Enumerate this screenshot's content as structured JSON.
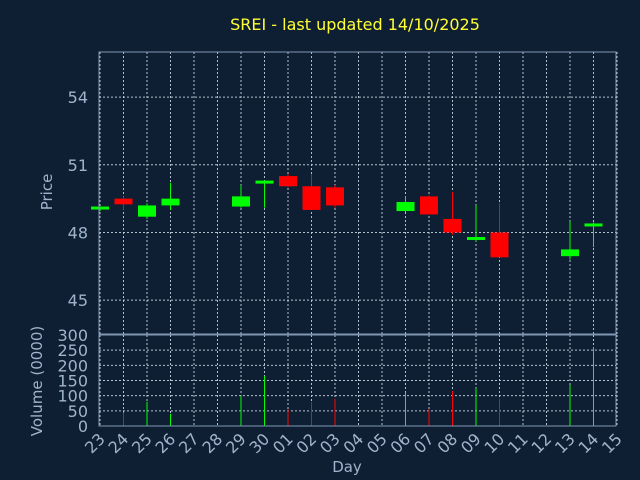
{
  "chart_data": {
    "type": "candlestick",
    "title": "SREI - last updated 14/10/2025",
    "xlabel": "Day",
    "price_ylabel": "Price",
    "volume_ylabel": "Volume (0000)",
    "x_tick_labels": [
      "23",
      "24",
      "25",
      "26",
      "27",
      "28",
      "29",
      "30",
      "01",
      "02",
      "03",
      "04",
      "05",
      "06",
      "07",
      "08",
      "09",
      "10",
      "11",
      "12",
      "13",
      "14",
      "15"
    ],
    "price_ylim": [
      43.5,
      56.0
    ],
    "price_ticks": [
      45,
      48,
      51,
      54
    ],
    "volume_ylim": [
      0,
      300
    ],
    "volume_ticks": [
      0,
      50,
      100,
      150,
      200,
      250,
      300
    ],
    "grid": true,
    "up_color": "#00ff00",
    "down_color": "#ff0000",
    "candles": [
      {
        "day": 0,
        "open": 49.05,
        "high": 49.15,
        "low": 48.95,
        "close": 49.15,
        "volume": 0
      },
      {
        "day": 1,
        "open": 49.5,
        "high": 49.6,
        "low": 49.0,
        "close": 49.25,
        "volume": 45
      },
      {
        "day": 2,
        "open": 48.7,
        "high": 49.3,
        "low": 48.6,
        "close": 49.2,
        "volume": 80
      },
      {
        "day": 3,
        "open": 49.2,
        "high": 50.2,
        "low": 49.0,
        "close": 49.5,
        "volume": 40
      },
      {
        "day": 6,
        "open": 49.15,
        "high": 50.1,
        "low": 49.1,
        "close": 49.6,
        "volume": 100
      },
      {
        "day": 7,
        "open": 50.2,
        "high": 50.3,
        "low": 49.1,
        "close": 50.3,
        "volume": 165
      },
      {
        "day": 8,
        "open": 50.5,
        "high": 50.6,
        "low": 50.0,
        "close": 50.05,
        "volume": 55
      },
      {
        "day": 9,
        "open": 50.05,
        "high": 50.6,
        "low": 49.0,
        "close": 49.0,
        "volume": 80
      },
      {
        "day": 10,
        "open": 50.0,
        "high": 50.1,
        "low": 49.1,
        "close": 49.2,
        "volume": 90
      },
      {
        "day": 13,
        "open": 48.95,
        "high": 49.6,
        "low": 48.9,
        "close": 49.35,
        "volume": 110
      },
      {
        "day": 14,
        "open": 49.6,
        "high": 49.65,
        "low": 48.8,
        "close": 48.8,
        "volume": 55
      },
      {
        "day": 15,
        "open": 48.6,
        "high": 49.8,
        "low": 47.9,
        "close": 48.0,
        "volume": 115
      },
      {
        "day": 16,
        "open": 47.7,
        "high": 49.2,
        "low": 47.6,
        "close": 47.8,
        "volume": 125
      },
      {
        "day": 17,
        "open": 48.0,
        "high": 49.3,
        "low": 46.9,
        "close": 46.9,
        "volume": 90
      },
      {
        "day": 20,
        "open": 46.95,
        "high": 48.5,
        "low": 46.8,
        "close": 47.25,
        "volume": 135
      },
      {
        "day": 21,
        "open": 48.35,
        "high": 48.45,
        "low": 47.35,
        "close": 48.4,
        "volume": 260
      }
    ]
  }
}
